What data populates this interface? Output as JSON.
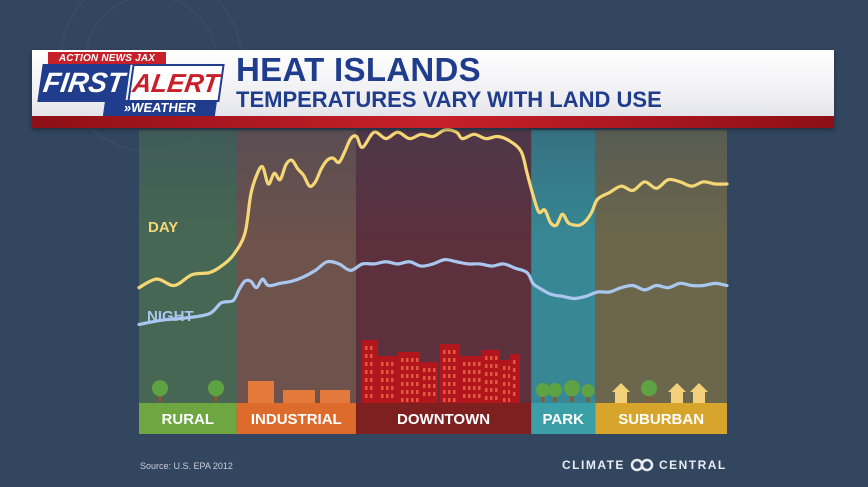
{
  "header": {
    "station": "ACTION NEWS JAX",
    "logo_first": "FIRST",
    "logo_alert": "ALERT",
    "logo_weather": "»WEATHER",
    "title": "HEAT ISLANDS",
    "subtitle": "TEMPERATURES VARY WITH LAND USE"
  },
  "footer": {
    "source": "Source: U.S. EPA 2012",
    "brand": "CLIMATE CENTRAL"
  },
  "colors": {
    "day": "#f6d776",
    "night": "#a9c7ef",
    "rural": "#6ea641",
    "industrial": "#dd6b2c",
    "downtown": "#7e1f20",
    "park": "#3a9fa6",
    "suburban": "#d8a52c"
  },
  "chart_data": {
    "type": "line",
    "title": "HEAT ISLANDS",
    "subtitle": "TEMPERATURES VARY WITH LAND USE",
    "xlabel": "",
    "ylabel": "",
    "grid": false,
    "legend": "inline labels on left",
    "ylim": [
      0,
      100
    ],
    "zones": [
      {
        "label": "RURAL",
        "start": 0,
        "end": 16.6
      },
      {
        "label": "INDUSTRIAL",
        "start": 16.6,
        "end": 36.9
      },
      {
        "label": "DOWNTOWN",
        "start": 36.9,
        "end": 66.7
      },
      {
        "label": "PARK",
        "start": 66.7,
        "end": 77.6
      },
      {
        "label": "SUBURBAN",
        "start": 77.6,
        "end": 100
      }
    ],
    "series": [
      {
        "name": "DAY",
        "points": [
          [
            0,
            27
          ],
          [
            3,
            31
          ],
          [
            6,
            28
          ],
          [
            9,
            33
          ],
          [
            12,
            34
          ],
          [
            14,
            37
          ],
          [
            16,
            42
          ],
          [
            18,
            52
          ],
          [
            19,
            70
          ],
          [
            20,
            79
          ],
          [
            21,
            83
          ],
          [
            22,
            75
          ],
          [
            23,
            80
          ],
          [
            24,
            77
          ],
          [
            25,
            84
          ],
          [
            26,
            86
          ],
          [
            27,
            82
          ],
          [
            28,
            79
          ],
          [
            29,
            74
          ],
          [
            30,
            76
          ],
          [
            31,
            82
          ],
          [
            32,
            86
          ],
          [
            33,
            87
          ],
          [
            34,
            85
          ],
          [
            35,
            90
          ],
          [
            36,
            96
          ],
          [
            37,
            97
          ],
          [
            38,
            92
          ],
          [
            40,
            99
          ],
          [
            42,
            96
          ],
          [
            44,
            99
          ],
          [
            46,
            96
          ],
          [
            48,
            98
          ],
          [
            50,
            97
          ],
          [
            52,
            100
          ],
          [
            54,
            99
          ],
          [
            55,
            96
          ],
          [
            57,
            98
          ],
          [
            59,
            96
          ],
          [
            61,
            97
          ],
          [
            63,
            95
          ],
          [
            65,
            90
          ],
          [
            66,
            80
          ],
          [
            67,
            70
          ],
          [
            68,
            62
          ],
          [
            69,
            63
          ],
          [
            70,
            57
          ],
          [
            71,
            56
          ],
          [
            72,
            61
          ],
          [
            73,
            57
          ],
          [
            74,
            56
          ],
          [
            75,
            56
          ],
          [
            76,
            58
          ],
          [
            77,
            62
          ],
          [
            78,
            68
          ],
          [
            80,
            71
          ],
          [
            82,
            74
          ],
          [
            84,
            72
          ],
          [
            86,
            76
          ],
          [
            88,
            73
          ],
          [
            90,
            77
          ],
          [
            92,
            76
          ],
          [
            94,
            74
          ],
          [
            96,
            76
          ],
          [
            98,
            75
          ],
          [
            100,
            75
          ]
        ]
      },
      {
        "name": "NIGHT",
        "points": [
          [
            0,
            10
          ],
          [
            4,
            12
          ],
          [
            8,
            13
          ],
          [
            12,
            15
          ],
          [
            14,
            20
          ],
          [
            16,
            21
          ],
          [
            17,
            26
          ],
          [
            18,
            30
          ],
          [
            19,
            30
          ],
          [
            20,
            27
          ],
          [
            21,
            31
          ],
          [
            22,
            28
          ],
          [
            24,
            29
          ],
          [
            26,
            30
          ],
          [
            28,
            32
          ],
          [
            30,
            35
          ],
          [
            32,
            39
          ],
          [
            34,
            38
          ],
          [
            36,
            35
          ],
          [
            38,
            38
          ],
          [
            40,
            38
          ],
          [
            42,
            39
          ],
          [
            44,
            38
          ],
          [
            46,
            39
          ],
          [
            48,
            37
          ],
          [
            50,
            38
          ],
          [
            52,
            40
          ],
          [
            54,
            39
          ],
          [
            56,
            38
          ],
          [
            58,
            38
          ],
          [
            60,
            37
          ],
          [
            62,
            38
          ],
          [
            64,
            36
          ],
          [
            66,
            34
          ],
          [
            67,
            29
          ],
          [
            68,
            27
          ],
          [
            70,
            24
          ],
          [
            72,
            23
          ],
          [
            74,
            22
          ],
          [
            76,
            23
          ],
          [
            78,
            25
          ],
          [
            80,
            25
          ],
          [
            82,
            27
          ],
          [
            84,
            28
          ],
          [
            86,
            26
          ],
          [
            88,
            28
          ],
          [
            90,
            27
          ],
          [
            92,
            29
          ],
          [
            94,
            28
          ],
          [
            96,
            28
          ],
          [
            98,
            29
          ],
          [
            100,
            28
          ]
        ]
      }
    ]
  }
}
